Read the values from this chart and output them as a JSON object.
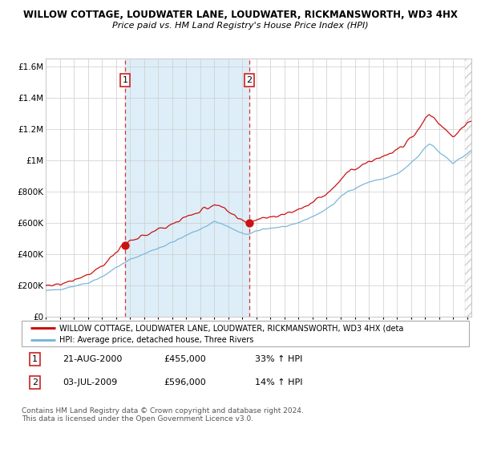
{
  "title1": "WILLOW COTTAGE, LOUDWATER LANE, LOUDWATER, RICKMANSWORTH, WD3 4HX",
  "title2": "Price paid vs. HM Land Registry's House Price Index (HPI)",
  "legend_line1": "WILLOW COTTAGE, LOUDWATER LANE, LOUDWATER, RICKMANSWORTH, WD3 4HX (deta",
  "legend_line2": "HPI: Average price, detached house, Three Rivers",
  "sale1_label": "1",
  "sale1_date": "21-AUG-2000",
  "sale1_price": "£455,000",
  "sale1_hpi": "33% ↑ HPI",
  "sale1_year": 2000.64,
  "sale1_value": 455000,
  "sale2_label": "2",
  "sale2_date": "03-JUL-2009",
  "sale2_price": "£596,000",
  "sale2_hpi": "14% ↑ HPI",
  "sale2_year": 2009.5,
  "sale2_value": 596000,
  "xmin": 1995.0,
  "xmax": 2025.3,
  "ymin": 0,
  "ymax": 1650000,
  "yticks": [
    0,
    200000,
    400000,
    600000,
    800000,
    1000000,
    1200000,
    1400000,
    1600000
  ],
  "ytick_labels": [
    "£0",
    "£200K",
    "£400K",
    "£600K",
    "£800K",
    "£1M",
    "£1.2M",
    "£1.4M",
    "£1.6M"
  ],
  "hpi_color": "#7ab8d9",
  "price_color": "#cc1111",
  "marker_color": "#cc1111",
  "dashed_color": "#dd3333",
  "shade_color": "#ddeef8",
  "grid_color": "#cccccc",
  "bg_color": "#ffffff",
  "footer_text": "Contains HM Land Registry data © Crown copyright and database right 2024.\nThis data is licensed under the Open Government Licence v3.0."
}
